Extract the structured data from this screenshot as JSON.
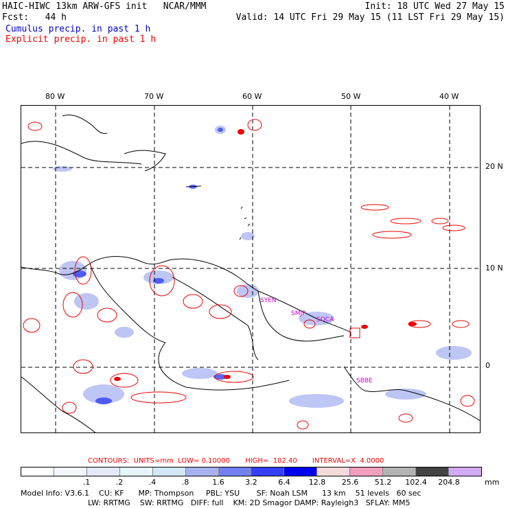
{
  "header": {
    "left_line1": "HAIC-HIWC 13km ARW-GFS init   NCAR/MMM",
    "left_line2": "Fcst:   44 h",
    "right_line1": "Init: 18 UTC Wed 27 May 15",
    "right_line2": "Valid: 14 UTC Fri 29 May 15 (11 LST Fri 29 May 15)",
    "legend_cumulus": "Cumulus precip. in past 1 h",
    "legend_explicit": "Explicit precip. in past 1 h"
  },
  "map": {
    "lon_labels": [
      "80 W",
      "70 W",
      "60 W",
      "50 W",
      "40 W"
    ],
    "lat_labels": [
      "20 N",
      "10 N",
      "0"
    ],
    "stations": [
      "SYEN",
      "SMJP",
      "SOCA",
      "SBBE"
    ],
    "colors": {
      "cumulus": "#3344ee",
      "explicit": "#ee0000",
      "coast": "#000000",
      "grid": "#000000"
    }
  },
  "contours_text": "CONTOURS:  UNITS=mm  LOW= 0.10000       HIGH=  102.40       INTERVAL=X  4.0000",
  "colorbar": {
    "levels": [
      ".1",
      ".2",
      ".4",
      ".8",
      "1.6",
      "3.2",
      "6.4",
      "12.8",
      "25.6",
      "51.2",
      "102.4",
      "204.8"
    ],
    "units": "mm",
    "colors": [
      "#ffffff",
      "#f4f6fd",
      "#e4eaf9",
      "#e6f6fa",
      "#d2e7f7",
      "#a7b3f0",
      "#7280f1",
      "#3340f4",
      "#0000f0",
      "#f5dada",
      "#f19ec0",
      "#b3b3b3",
      "#444444",
      "#d1a9f4"
    ]
  },
  "model_info": {
    "line1": "Model Info: V3.6.1    CU: KF      MP: Thompson     PBL: YSU       SF: Noah LSM      13 km    51 levels   60 sec",
    "line2": "LW: RRTMG    SW: RRTMG   DIFF: full    KM: 2D Smagor DAMP: Rayleigh3   SFLAY: MM5"
  }
}
